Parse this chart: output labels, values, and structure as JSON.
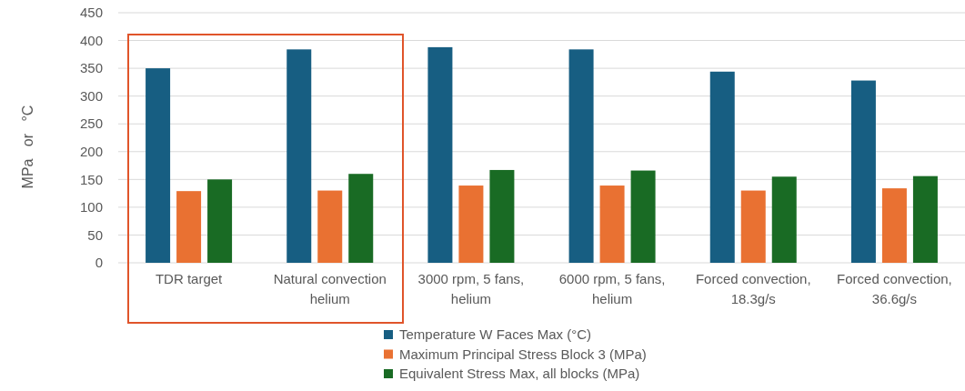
{
  "chart_data": {
    "type": "bar",
    "ylabel": "MPa   or   °C",
    "categories": [
      "TDR target",
      "Natural convection helium",
      "3000 rpm, 5 fans, helium",
      "6000 rpm, 5 fans, helium",
      "Forced convection, 18.3g/s",
      "Forced convection, 36.6g/s"
    ],
    "series": [
      {
        "name": "Temperature W Faces Max (°C)",
        "color": "#175e82",
        "values": [
          350,
          384,
          388,
          384,
          344,
          328
        ]
      },
      {
        "name": "Maximum Principal Stress Block 3 (MPa)",
        "color": "#e97132",
        "values": [
          129,
          130,
          139,
          139,
          130,
          134
        ]
      },
      {
        "name": "Equivalent Stress Max, all blocks (MPa)",
        "color": "#196b24",
        "values": [
          150,
          160,
          167,
          166,
          155,
          156
        ]
      }
    ],
    "ylim": [
      0,
      450
    ],
    "yticks": [
      0,
      50,
      100,
      150,
      200,
      250,
      300,
      350,
      400,
      450
    ],
    "grid": "y",
    "legend": "bottom"
  }
}
